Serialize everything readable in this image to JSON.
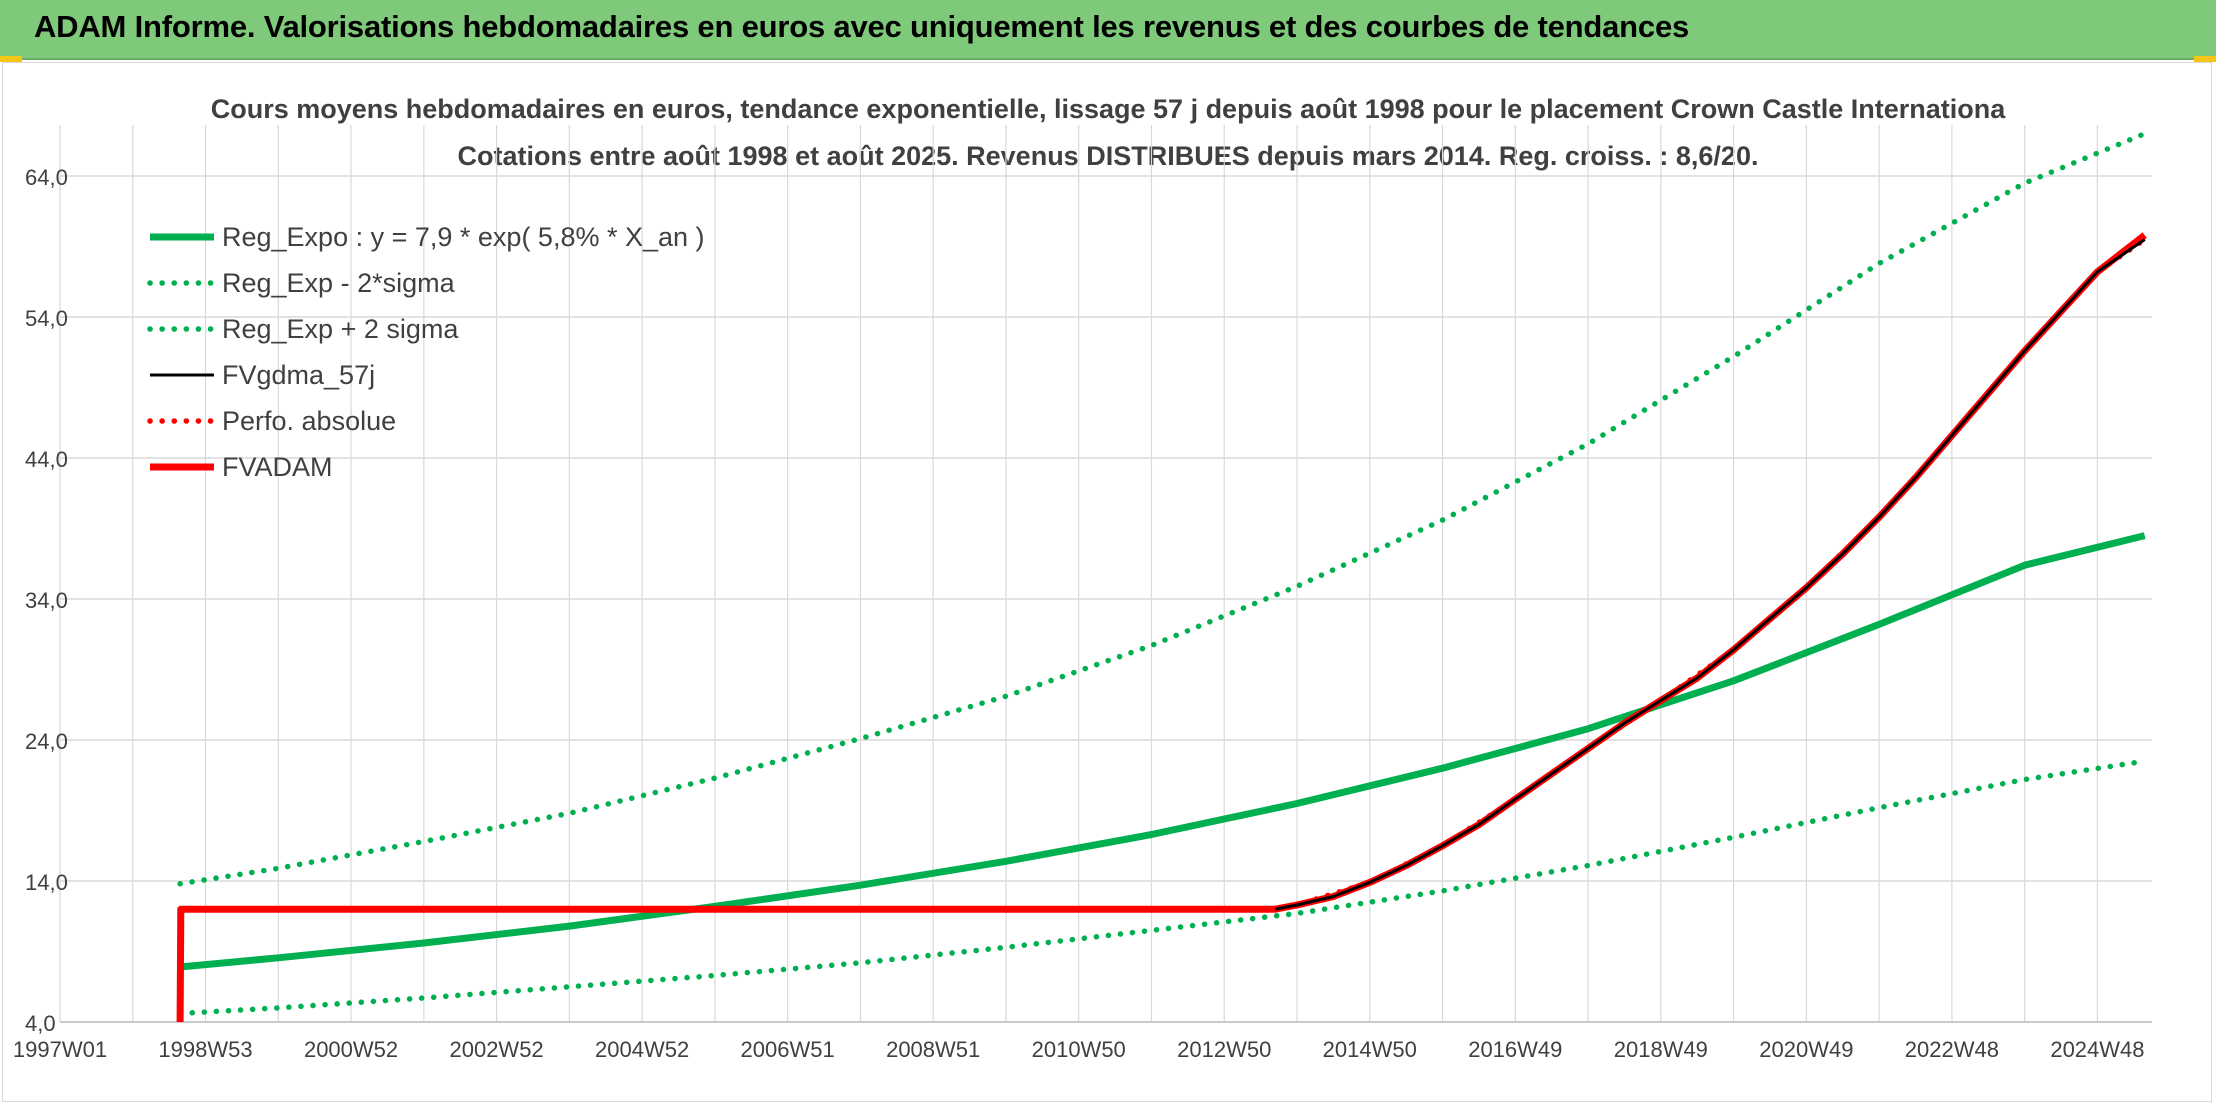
{
  "header": {
    "title": "ADAM Informe. Valorisations hebdomadaires en euros avec uniquement les revenus et des courbes de tendances"
  },
  "colors": {
    "header_bg": "#7fc97a",
    "reg_expo": "#00b050",
    "fvgdma": "#000000",
    "fvadam": "#ff0000",
    "perfo": "#ff0000",
    "grid": "#d9d9d9"
  },
  "chart_data": {
    "type": "line",
    "title": "Cours moyens hebdomadaires en euros, tendance exponentielle, lissage 57 j depuis août 1998 pour le placement Crown Castle Internationa",
    "subtitle": "Cotations entre août 1998 et août 2025. Revenus DISTRIBUES depuis mars 2014. Reg. croiss. : 8,6/20.",
    "xlabel": "",
    "ylabel": "",
    "ylim": [
      4,
      64
    ],
    "y_ticks": [
      "4,0",
      "14,0",
      "24,0",
      "34,0",
      "44,0",
      "54,0",
      "64,0"
    ],
    "x_ticks": [
      "1997W01",
      "1998W53",
      "2000W52",
      "2002W52",
      "2004W52",
      "2006W51",
      "2008W51",
      "2010W50",
      "2012W50",
      "2014W50",
      "2016W49",
      "2018W49",
      "2020W49",
      "2022W48",
      "2024W48"
    ],
    "xlim": [
      1997.0,
      2025.75
    ],
    "grid": true,
    "legend_position": "top-left",
    "legend": [
      "Reg_Expo : y = 7,9 * exp( 5,8% *  X_an )",
      "Reg_Exp - 2*sigma",
      "Reg_Exp + 2 sigma",
      "FVgdma_57j",
      "Perfo. absolue",
      "FVADAM"
    ],
    "series": [
      {
        "name": "Reg_Expo : y = 7,9 * exp( 5,8% *  X_an )",
        "style": "solid-thick",
        "color": "#00b050",
        "x": [
          1998.65,
          2000,
          2002,
          2004,
          2006,
          2008,
          2010,
          2012,
          2014,
          2016,
          2018,
          2020,
          2022,
          2024,
          2025.65
        ],
        "y": [
          7.9,
          8.55,
          9.6,
          10.8,
          12.2,
          13.7,
          15.4,
          17.3,
          19.5,
          22.0,
          24.8,
          28.2,
          32.2,
          36.4,
          38.5
        ]
      },
      {
        "name": "Reg_Exp - 2*sigma",
        "style": "dotted",
        "color": "#00b050",
        "x": [
          1998.65,
          2000,
          2002,
          2004,
          2006,
          2008,
          2010,
          2012,
          2014,
          2016,
          2018,
          2020,
          2022,
          2024,
          2025.65
        ],
        "y": [
          4.6,
          5.0,
          5.7,
          6.5,
          7.3,
          8.2,
          9.3,
          10.5,
          11.7,
          13.3,
          15.1,
          17.1,
          19.2,
          21.2,
          22.5
        ]
      },
      {
        "name": "Reg_Exp + 2 sigma",
        "style": "dotted",
        "color": "#00b050",
        "x": [
          1998.65,
          2000,
          2002,
          2004,
          2006,
          2008,
          2010,
          2012,
          2014,
          2016,
          2018,
          2020,
          2022,
          2024,
          2025.65
        ],
        "y": [
          13.8,
          14.9,
          16.8,
          18.8,
          21.3,
          24.1,
          27.1,
          30.7,
          34.9,
          39.6,
          45.0,
          51.2,
          57.8,
          63.5,
          67.0
        ]
      },
      {
        "name": "FVgdma_57j",
        "style": "solid",
        "color": "#000000",
        "x": [
          2013.7,
          2014.0,
          2014.5,
          2015.0,
          2015.5,
          2016.0,
          2016.5,
          2017.0,
          2017.5,
          2018.0,
          2018.5,
          2019.0,
          2019.5,
          2020.0,
          2020.5,
          2021.0,
          2021.5,
          2022.0,
          2022.5,
          2023.0,
          2023.5,
          2024.0,
          2024.5,
          2025.0,
          2025.65
        ],
        "y": [
          12.0,
          12.3,
          12.9,
          13.9,
          15.1,
          16.5,
          18.0,
          19.8,
          21.6,
          23.4,
          25.2,
          26.8,
          28.4,
          30.4,
          32.6,
          34.8,
          37.2,
          39.8,
          42.6,
          45.6,
          48.6,
          51.6,
          54.4,
          57.2,
          59.5
        ]
      },
      {
        "name": "Perfo. absolue",
        "style": "dotted",
        "color": "#ff0000",
        "x": [
          1998.65,
          2013.7,
          2014.0,
          2015.0,
          2016.0,
          2017.0,
          2018.0,
          2019.0,
          2020.0,
          2021.0,
          2022.0,
          2023.0,
          2024.0,
          2025.0,
          2025.65
        ],
        "y": [
          12.0,
          12.0,
          12.3,
          13.9,
          16.5,
          19.8,
          23.4,
          26.8,
          30.4,
          34.8,
          39.8,
          45.6,
          51.6,
          57.2,
          59.5
        ]
      },
      {
        "name": "FVADAM",
        "style": "solid-thick",
        "color": "#ff0000",
        "x": [
          1998.65,
          1998.66,
          2013.7,
          2014.0,
          2014.5,
          2015.0,
          2015.5,
          2016.0,
          2016.5,
          2017.0,
          2017.5,
          2018.0,
          2018.5,
          2019.0,
          2019.5,
          2020.0,
          2020.5,
          2021.0,
          2021.5,
          2022.0,
          2022.5,
          2023.0,
          2023.5,
          2024.0,
          2024.5,
          2025.0,
          2025.65
        ],
        "y": [
          4.0,
          12.0,
          12.0,
          12.3,
          12.9,
          13.9,
          15.1,
          16.5,
          18.0,
          19.8,
          21.6,
          23.4,
          25.2,
          26.8,
          28.4,
          30.4,
          32.6,
          34.8,
          37.2,
          39.8,
          42.6,
          45.6,
          48.6,
          51.6,
          54.4,
          57.2,
          59.8
        ]
      }
    ]
  }
}
